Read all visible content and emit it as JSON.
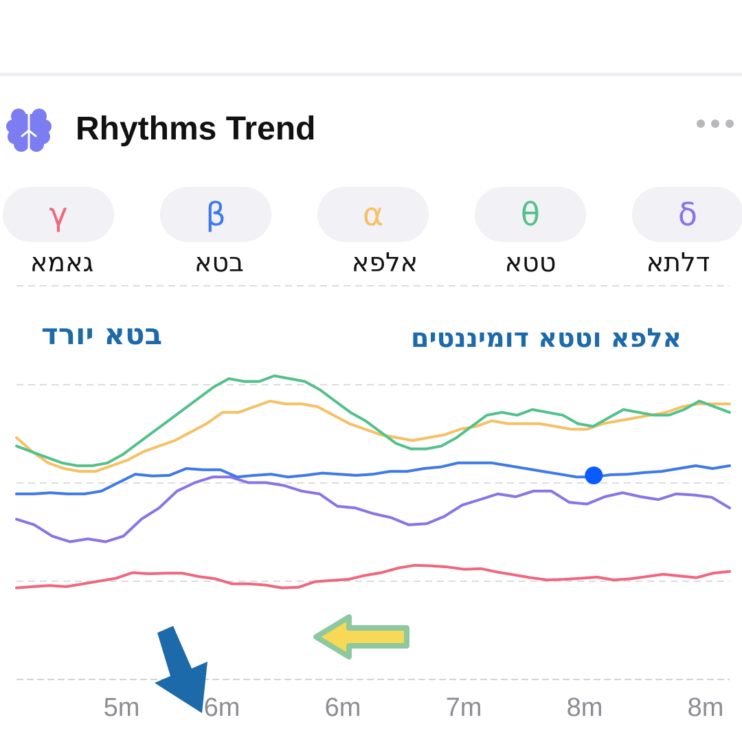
{
  "card": {
    "title": "Rhythms Trend",
    "icon": "brain-icon",
    "menu_icon": "more-dots-icon"
  },
  "bands": [
    {
      "symbol": "γ",
      "label": "גאמא",
      "color": "#f0667e"
    },
    {
      "symbol": "β",
      "label": "בטא",
      "color": "#3e79ea"
    },
    {
      "symbol": "α",
      "label": "אלפא",
      "color": "#f6c063"
    },
    {
      "symbol": "θ",
      "label": "טטא",
      "color": "#52c18b"
    },
    {
      "symbol": "δ",
      "label": "דלתא",
      "color": "#8a73e6"
    }
  ],
  "annotations": {
    "beta_note": "בטא יורד",
    "alpha_theta_note": "אלפא וטטא דומיננטים",
    "beta_arrow_color": "#1d6aaa",
    "alpha_theta_arrow_colors": {
      "fill": "#f8d957",
      "outline": "#8ec89e"
    }
  },
  "chart_data": {
    "type": "line",
    "x_tick_labels": [
      "5m",
      "6m",
      "6m",
      "7m",
      "8m",
      "8m"
    ],
    "y_axis_labels": "none",
    "grid": "horizontal dashed",
    "highlight_marker": {
      "series": "β",
      "x_index": 34,
      "color": "#0a5cff"
    },
    "series": [
      {
        "name": "θ",
        "color": "#52c18b",
        "values": [
          61.5,
          60.5,
          59.5,
          58.5,
          58,
          58,
          58.5,
          60,
          62,
          64,
          66,
          68,
          70,
          72,
          73.5,
          73,
          73,
          74,
          73.5,
          73,
          71.5,
          69.5,
          67.5,
          66,
          64,
          62,
          61,
          61,
          61.5,
          63,
          65,
          67,
          67.5,
          67,
          68,
          67.5,
          67,
          65.5,
          65,
          66.5,
          68,
          67.5,
          67,
          67,
          68,
          69.5,
          68.5,
          67.5
        ]
      },
      {
        "name": "α",
        "color": "#f6c063",
        "values": [
          63,
          60.5,
          58.5,
          57.5,
          57,
          57,
          58,
          59,
          60.5,
          61.5,
          62.5,
          64,
          65.5,
          67.5,
          67.5,
          68.5,
          69.5,
          69,
          69,
          68.5,
          67,
          65.5,
          64.5,
          63.5,
          63,
          62.5,
          63,
          63.5,
          64.5,
          65,
          66,
          65.5,
          65.5,
          65.5,
          65,
          64.5,
          64.5,
          65.5,
          66,
          66.5,
          67,
          67.5,
          68.5,
          69,
          69,
          69
        ]
      },
      {
        "name": "β",
        "color": "#3e79ea",
        "values": [
          53,
          53,
          53.2,
          53,
          53,
          53.5,
          55,
          56.5,
          56.2,
          56.3,
          57.5,
          57.3,
          57.3,
          56,
          56.3,
          56.5,
          56,
          56.3,
          56.7,
          56.5,
          56.3,
          56.5,
          57,
          57,
          57.5,
          57.8,
          58.5,
          58.5,
          58.5,
          58,
          57.5,
          57,
          56.5,
          56,
          56,
          56.4,
          56.5,
          56.8,
          57,
          57.5,
          58,
          57.5,
          58
        ]
      },
      {
        "name": "δ",
        "color": "#8a73e6",
        "values": [
          48.5,
          47.5,
          45.5,
          44.5,
          45,
          44.5,
          45.5,
          48.5,
          50.5,
          53.5,
          55,
          56,
          56,
          55,
          55,
          54.5,
          53.5,
          53,
          50.8,
          50.5,
          49.5,
          48.8,
          47.5,
          47.7,
          49,
          51,
          52,
          53,
          52.5,
          53.5,
          53.5,
          51.5,
          51.2,
          52.5,
          53.2,
          52.5,
          52,
          53,
          52.8,
          52.4,
          50.5
        ]
      },
      {
        "name": "γ",
        "color": "#f0667e",
        "values": [
          36.3,
          36.5,
          36.7,
          36.5,
          37,
          37.5,
          38,
          39,
          38.8,
          38.9,
          38.9,
          38.3,
          37.9,
          37,
          37,
          36.8,
          36.3,
          36.4,
          37.4,
          37.6,
          37.8,
          38.5,
          39,
          39.8,
          40.3,
          40.2,
          40,
          39.6,
          39.7,
          39.1,
          38.6,
          38.1,
          37.7,
          37.8,
          38,
          38.2,
          37.7,
          37.9,
          38.3,
          38.7,
          38.4,
          38.1,
          38.9,
          39.2
        ]
      }
    ]
  }
}
